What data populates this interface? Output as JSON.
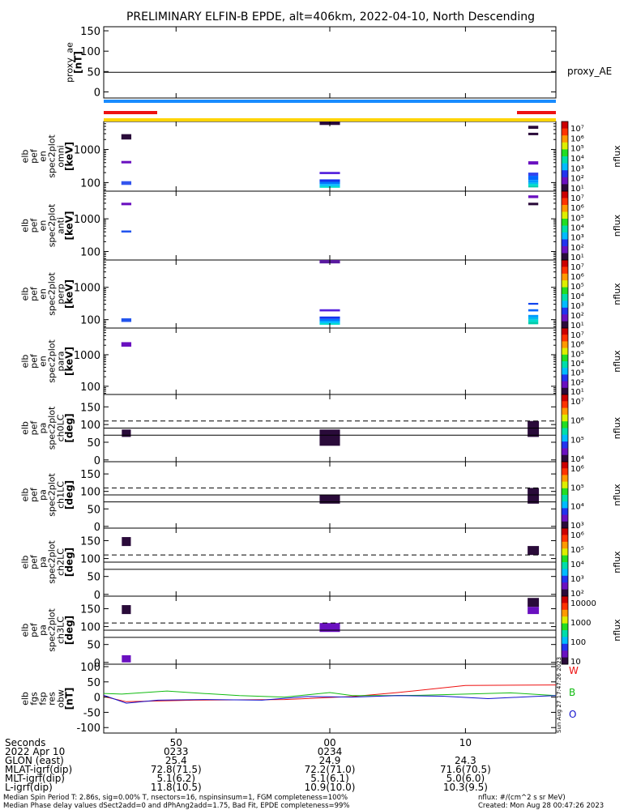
{
  "title": "PRELIMINARY ELFIN-B EPDE, alt=406km, 2022-04-10, North Descending",
  "side_stamp": "Sun Aug 27 17:47:26 2023",
  "colorbar_label": "nflux",
  "bars": {
    "blue_line": "#1a8cff",
    "red_segments": "#ee1111",
    "yellow_line": "#ffd400"
  },
  "chart_data": [
    {
      "type": "line",
      "panel": "proxy_ae",
      "ylabel": [
        "proxy_ae",
        "[nT]"
      ],
      "yticks": [
        0,
        50,
        100,
        150
      ],
      "ylim": [
        -15,
        160
      ],
      "series": [
        {
          "name": "proxy_AE",
          "x": [
            0,
            100
          ],
          "values": [
            48,
            48
          ],
          "color": "#000000"
        }
      ]
    },
    {
      "type": "heatmap",
      "panel": "spec_omni",
      "ylabel": [
        "elb",
        "pef",
        "en",
        "spec2plot",
        "omni",
        "[keV]"
      ],
      "yscale": "log",
      "yticks": [
        100,
        1000
      ],
      "ylim": [
        55,
        7000
      ],
      "cblabels": [
        "10⁷",
        "10⁶",
        "10⁵",
        "10⁴",
        "10³",
        "10²",
        "10¹"
      ],
      "cells": [
        {
          "x": 5,
          "e": [
            2000,
            2900
          ],
          "c": "#2a0b3a"
        },
        {
          "x": 5,
          "e": [
            380,
            450
          ],
          "c": "#6a10c0"
        },
        {
          "x": 5,
          "e": [
            85,
            110
          ],
          "c": "#3355ee"
        },
        {
          "x": 50,
          "e": [
            5500,
            7000
          ],
          "c": "#2a0b3a"
        },
        {
          "x": 50,
          "e": [
            180,
            210
          ],
          "c": "#5522dd"
        },
        {
          "x": 50,
          "e": [
            105,
            125
          ],
          "c": "#1133ee"
        },
        {
          "x": 50,
          "e": [
            90,
            105
          ],
          "c": "#0077ff"
        },
        {
          "x": 50,
          "e": [
            78,
            90
          ],
          "c": "#00bbff"
        },
        {
          "x": 50,
          "e": [
            70,
            78
          ],
          "c": "#00ddcc"
        },
        {
          "x": 95,
          "e": [
            4200,
            5200
          ],
          "c": "#2a0b3a"
        },
        {
          "x": 95,
          "e": [
            2700,
            3200
          ],
          "c": "#2a0b3a"
        },
        {
          "x": 95,
          "e": [
            350,
            440
          ],
          "c": "#6a10c0"
        },
        {
          "x": 95,
          "e": [
            160,
            200
          ],
          "c": "#3344ee"
        },
        {
          "x": 95,
          "e": [
            120,
            160
          ],
          "c": "#0066ff"
        },
        {
          "x": 95,
          "e": [
            100,
            120
          ],
          "c": "#0099ff"
        },
        {
          "x": 95,
          "e": [
            90,
            100
          ],
          "c": "#00bbee"
        },
        {
          "x": 95,
          "e": [
            80,
            90
          ],
          "c": "#00ddcc"
        },
        {
          "x": 95,
          "e": [
            72,
            80
          ],
          "c": "#00ccaa"
        }
      ]
    },
    {
      "type": "heatmap",
      "panel": "spec_anti",
      "ylabel": [
        "elb",
        "pef",
        "en",
        "spec2plot",
        "anti",
        "[keV]"
      ],
      "yscale": "log",
      "yticks": [
        100,
        1000
      ],
      "ylim": [
        55,
        7000
      ],
      "cblabels": [
        "10⁷",
        "10⁶",
        "10⁵",
        "10⁴",
        "10³",
        "10²",
        "10¹"
      ],
      "cells": [
        {
          "x": 5,
          "e": [
            2600,
            3100
          ],
          "c": "#6a10c0"
        },
        {
          "x": 5,
          "e": [
            380,
            440
          ],
          "c": "#2255ee"
        },
        {
          "x": 95,
          "e": [
            4300,
            5200
          ],
          "c": "#6a10c0"
        },
        {
          "x": 95,
          "e": [
            2600,
            3100
          ],
          "c": "#2a0b3a"
        }
      ]
    },
    {
      "type": "heatmap",
      "panel": "spec_perp",
      "ylabel": [
        "elb",
        "pef",
        "en",
        "spec2plot",
        "perp",
        "[keV]"
      ],
      "yscale": "log",
      "yticks": [
        100,
        1000
      ],
      "ylim": [
        55,
        7000
      ],
      "cblabels": [
        "10⁷",
        "10⁶",
        "10⁵",
        "10⁴",
        "10³",
        "10²",
        "10¹"
      ],
      "cells": [
        {
          "x": 5,
          "e": [
            85,
            110
          ],
          "c": "#2255ee"
        },
        {
          "x": 50,
          "e": [
            5500,
            7000
          ],
          "c": "#5a1aa0"
        },
        {
          "x": 50,
          "e": [
            180,
            210
          ],
          "c": "#5522dd"
        },
        {
          "x": 50,
          "e": [
            105,
            125
          ],
          "c": "#1133ee"
        },
        {
          "x": 50,
          "e": [
            90,
            105
          ],
          "c": "#0077ff"
        },
        {
          "x": 50,
          "e": [
            78,
            90
          ],
          "c": "#00bbff"
        },
        {
          "x": 50,
          "e": [
            70,
            78
          ],
          "c": "#00ddcc"
        },
        {
          "x": 95,
          "e": [
            290,
            330
          ],
          "c": "#1144ee"
        },
        {
          "x": 95,
          "e": [
            180,
            210
          ],
          "c": "#0066ff"
        },
        {
          "x": 95,
          "e": [
            120,
            140
          ],
          "c": "#0099ff"
        },
        {
          "x": 95,
          "e": [
            100,
            120
          ],
          "c": "#00bbee"
        },
        {
          "x": 95,
          "e": [
            85,
            100
          ],
          "c": "#00ddcc"
        },
        {
          "x": 95,
          "e": [
            72,
            85
          ],
          "c": "#00ccaa"
        }
      ]
    },
    {
      "type": "heatmap",
      "panel": "spec_para",
      "ylabel": [
        "elb",
        "pef",
        "en",
        "spec2plot",
        "para",
        "[keV]"
      ],
      "yscale": "log",
      "yticks": [
        100,
        1000
      ],
      "ylim": [
        55,
        7000
      ],
      "cblabels": [
        "10⁷",
        "10⁶",
        "10⁵",
        "10⁴",
        "10³",
        "10²",
        "10¹"
      ],
      "cells": [
        {
          "x": 5,
          "e": [
            1800,
            2500
          ],
          "c": "#6a10c0"
        }
      ]
    },
    {
      "type": "heatmap",
      "panel": "pa_ch0",
      "ylabel": [
        "elb",
        "pef",
        "pa",
        "spec2plot",
        "ch0LC",
        "[deg]"
      ],
      "yticks": [
        0,
        50,
        100,
        150
      ],
      "ylim": [
        -5,
        185
      ],
      "cblabels": [
        "10⁷",
        "10⁶",
        "10⁵",
        "10⁴"
      ],
      "hlines": [
        {
          "y": 110,
          "style": "dash"
        },
        {
          "y": 90,
          "style": "solid"
        },
        {
          "y": 70,
          "style": "solid"
        }
      ],
      "cells": [
        {
          "x": 5,
          "w": 2,
          "y": [
            65,
            86
          ],
          "c": "#2a0b3a"
        },
        {
          "x": 50,
          "w": 4.5,
          "y": [
            40,
            86
          ],
          "c": "#2a0b3a"
        },
        {
          "x": 95,
          "w": 2.5,
          "y": [
            65,
            110
          ],
          "c": "#2a0b3a"
        }
      ]
    },
    {
      "type": "heatmap",
      "panel": "pa_ch1",
      "ylabel": [
        "elb",
        "pef",
        "pa",
        "spec2plot",
        "ch1LC",
        "[deg]"
      ],
      "yticks": [
        0,
        50,
        100,
        150
      ],
      "ylim": [
        -5,
        185
      ],
      "cblabels": [
        "10⁶",
        "10⁵",
        "10⁴",
        "10³"
      ],
      "hlines": [
        {
          "y": 110,
          "style": "dash"
        },
        {
          "y": 90,
          "style": "solid"
        },
        {
          "y": 70,
          "style": "solid"
        }
      ],
      "cells": [
        {
          "x": 50,
          "w": 4.5,
          "y": [
            65,
            90
          ],
          "c": "#2a0b3a"
        },
        {
          "x": 95,
          "w": 2.5,
          "y": [
            65,
            110
          ],
          "c": "#2a0b3a"
        }
      ]
    },
    {
      "type": "heatmap",
      "panel": "pa_ch2",
      "ylabel": [
        "elb",
        "pef",
        "pa",
        "spec2plot",
        "ch2LC",
        "[deg]"
      ],
      "yticks": [
        0,
        50,
        100,
        150
      ],
      "ylim": [
        -5,
        185
      ],
      "cblabels": [
        "10⁶",
        "10⁵",
        "10⁴",
        "10³",
        "10²"
      ],
      "hlines": [
        {
          "y": 110,
          "style": "dash"
        },
        {
          "y": 90,
          "style": "solid"
        },
        {
          "y": 70,
          "style": "solid"
        }
      ],
      "cells": [
        {
          "x": 5,
          "w": 2,
          "y": [
            135,
            160
          ],
          "c": "#2a0b3a"
        },
        {
          "x": 95,
          "w": 2.5,
          "y": [
            110,
            135
          ],
          "c": "#2a0b3a"
        }
      ]
    },
    {
      "type": "heatmap",
      "panel": "pa_ch3",
      "ylabel": [
        "elb",
        "pef",
        "pa",
        "spec2plot",
        "ch3LC",
        "[deg]"
      ],
      "yticks": [
        0,
        50,
        100,
        150
      ],
      "ylim": [
        -5,
        185
      ],
      "cblabels": [
        "10000",
        "1000",
        "100",
        "10"
      ],
      "hlines": [
        {
          "y": 110,
          "style": "dash"
        },
        {
          "y": 90,
          "style": "solid"
        },
        {
          "y": 70,
          "style": "solid"
        }
      ],
      "cells": [
        {
          "x": 5,
          "w": 2,
          "y": [
            135,
            160
          ],
          "c": "#2a0b3a"
        },
        {
          "x": 5,
          "w": 2,
          "y": [
            0,
            20
          ],
          "c": "#6a10c0"
        },
        {
          "x": 50,
          "w": 4.5,
          "y": [
            85,
            110
          ],
          "c": "#6a10c0"
        },
        {
          "x": 95,
          "w": 2.5,
          "y": [
            155,
            180
          ],
          "c": "#2a0b3a"
        },
        {
          "x": 95,
          "w": 2.5,
          "y": [
            135,
            155
          ],
          "c": "#6a10c0"
        }
      ]
    },
    {
      "type": "line",
      "panel": "fgs",
      "ylabel": [
        "elb",
        "fgs",
        "fsp",
        "res",
        "obw",
        "[nT]"
      ],
      "yticks": [
        -100,
        -50,
        0,
        50,
        100
      ],
      "ylim": [
        -118,
        108
      ],
      "legend": [
        {
          "label": "W",
          "color": "#ee1111"
        },
        {
          "label": "B",
          "color": "#11bb11"
        },
        {
          "label": "O",
          "color": "#1111cc"
        }
      ],
      "series": [
        {
          "name": "W",
          "color": "#ee1111",
          "x": [
            0,
            5,
            20,
            40,
            55,
            65,
            80,
            100
          ],
          "values": [
            2,
            -15,
            -10,
            -8,
            2,
            15,
            38,
            40
          ]
        },
        {
          "name": "B",
          "color": "#11bb11",
          "x": [
            0,
            4,
            8,
            14,
            22,
            30,
            40,
            50,
            55,
            62,
            70,
            80,
            90,
            100
          ],
          "values": [
            12,
            10,
            14,
            20,
            12,
            5,
            0,
            15,
            5,
            5,
            6,
            10,
            14,
            5
          ]
        },
        {
          "name": "O",
          "color": "#1111cc",
          "x": [
            0,
            5,
            12,
            22,
            35,
            45,
            55,
            65,
            75,
            85,
            95,
            100
          ],
          "values": [
            6,
            -20,
            -10,
            -8,
            -10,
            2,
            0,
            5,
            3,
            -5,
            2,
            5
          ]
        }
      ]
    }
  ],
  "xaxis": {
    "tick_positions": [
      16,
      50,
      80
    ],
    "rows": [
      {
        "label": "Seconds",
        "values": [
          "50",
          "00",
          "10"
        ]
      },
      {
        "label": "2022 Apr 10",
        "values": [
          "0233",
          "0234",
          ""
        ]
      },
      {
        "label": "GLON (east)",
        "values": [
          "25.4",
          "24.9",
          "24.3"
        ]
      },
      {
        "label": "MLAT-igrf(dip)",
        "values": [
          "72.8(71.5)",
          "72.2(71.0)",
          "71.6(70.5)"
        ]
      },
      {
        "label": "MLT-igrf(dip)",
        "values": [
          "5.1(6.2)",
          "5.1(6.1)",
          "5.0(6.0)"
        ]
      },
      {
        "label": "L-igrf(dip)",
        "values": [
          "11.8(10.5)",
          "10.9(10.0)",
          "10.3(9.5)"
        ]
      }
    ]
  },
  "footer": {
    "line1": "Median Spin Period T: 2.86s, sig=0.00% T, nsectors=16, nspinsinsum=1, FGM completeness=100%",
    "line2": "Median Phase delay values dSect2add=0 and dPhAng2add=1.75, Bad Fit, EPDE completeness=99%",
    "units": "nflux: #/(cm^2 s sr MeV)",
    "created": "Created: Mon Aug 28 00:47:26 2023"
  }
}
